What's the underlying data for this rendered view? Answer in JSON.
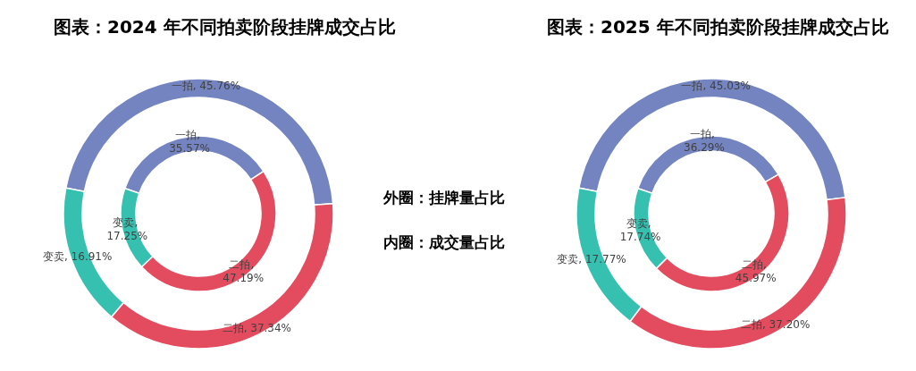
{
  "chart_data": [
    {
      "type": "donut",
      "title": "图表：2024 年不同拍卖阶段挂牌成交占比",
      "categories": [
        "一拍",
        "二拍",
        "变卖"
      ],
      "colors": [
        "#7484c1",
        "#e34c5f",
        "#35c0b0"
      ],
      "series": [
        {
          "values": [
            45.76,
            37.34,
            16.91
          ],
          "value_labels": [
            "45.76%",
            "37.34%",
            "16.91%"
          ]
        },
        {
          "values": [
            35.57,
            47.19,
            17.25
          ],
          "value_labels": [
            "一拍, 35.57%",
            "二拍, 47.19%",
            "变卖, 17.25%"
          ]
        }
      ],
      "annotations": [
        "外圈：挂牌量占比",
        "内圈：成交量占比"
      ]
    },
    {
      "type": "donut",
      "title": "图表：2025 年不同拍卖阶段挂牌成交占比",
      "categories": [
        "一拍",
        "二拍",
        "变卖"
      ],
      "colors": [
        "#7484c1",
        "#e34c5f",
        "#35c0b0"
      ],
      "series": [
        {
          "values": [
            45.03,
            37.2,
            17.77
          ],
          "value_labels": [
            "45.03%",
            "37.20%",
            "17.77%"
          ]
        },
        {
          "values": [
            36.29,
            45.97,
            17.74
          ],
          "value_labels": [
            "一拍, 36.29%",
            "二拍, 45.97%",
            "变卖, 17.74%"
          ]
        }
      ]
    }
  ]
}
